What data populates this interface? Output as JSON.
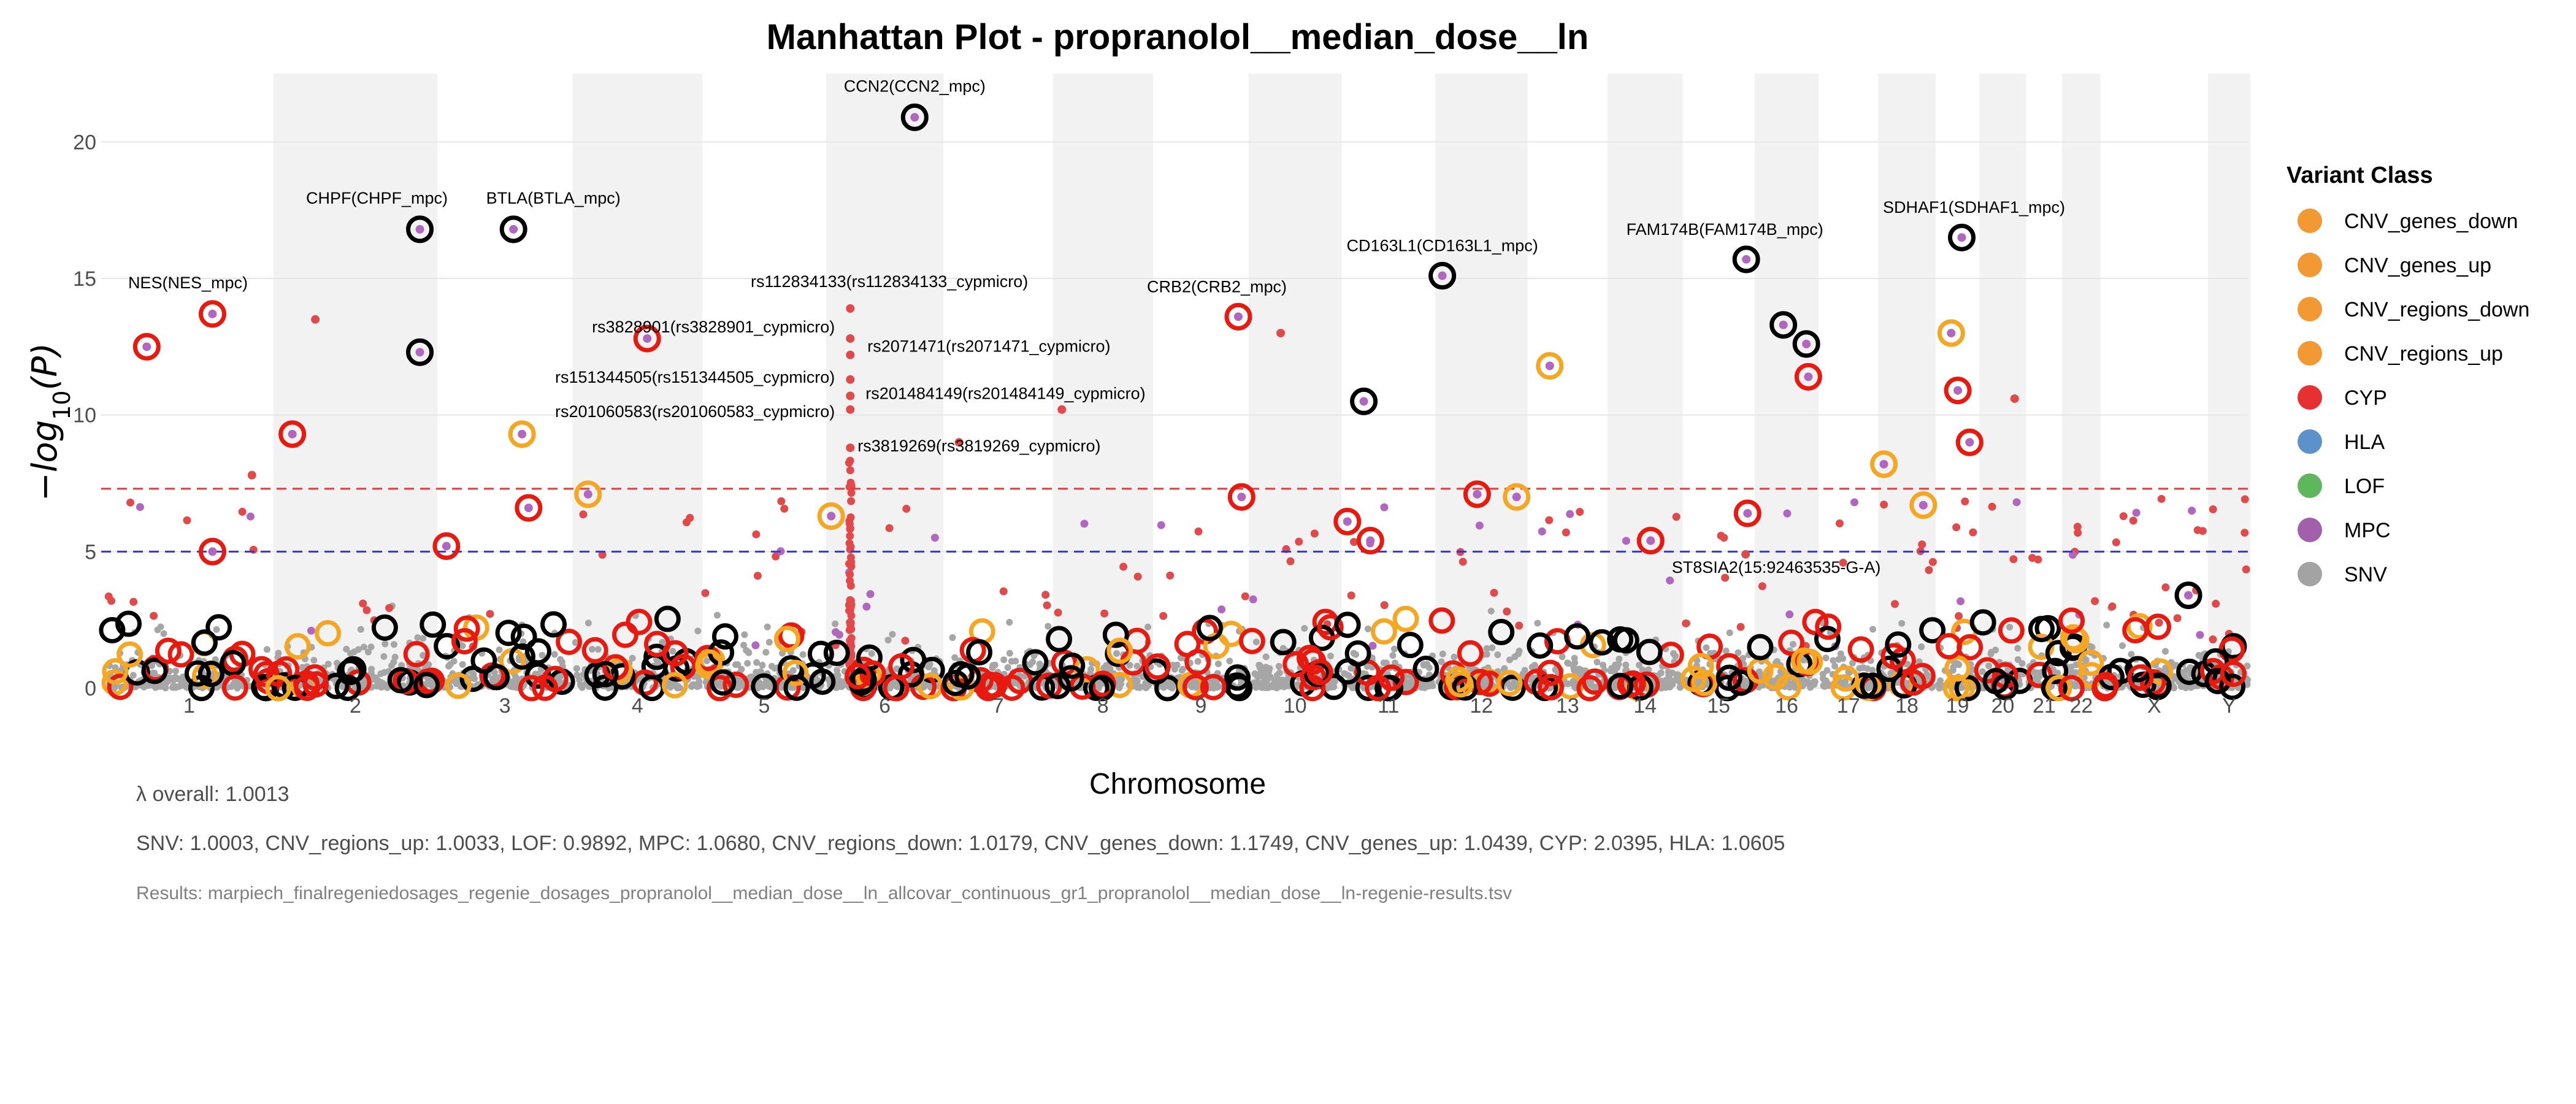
{
  "chart_data": {
    "type": "scatter",
    "title": "Manhattan Plot - propranolol__median_dose__ln",
    "xlabel": "Chromosome",
    "ylabel": "−log10(P)",
    "ylim": [
      0,
      22.5
    ],
    "yticks": [
      0,
      5,
      10,
      15,
      20
    ],
    "chromosomes": [
      "1",
      "2",
      "3",
      "4",
      "5",
      "6",
      "7",
      "8",
      "9",
      "10",
      "11",
      "12",
      "13",
      "14",
      "15",
      "16",
      "17",
      "18",
      "19",
      "20",
      "21",
      "22",
      "X",
      "Y"
    ],
    "chrom_lengths_mb": [
      249,
      242,
      198,
      190,
      181,
      171,
      159,
      145,
      138,
      134,
      135,
      133,
      114,
      107,
      102,
      90,
      83,
      80,
      59,
      64,
      47,
      51,
      156,
      57
    ],
    "thresholds": [
      {
        "name": "genome-wide",
        "y": 7.3,
        "color": "#e8393a"
      },
      {
        "name": "suggestive",
        "y": 5.0,
        "color": "#3333ee"
      }
    ],
    "legend": {
      "title": "Variant Class",
      "entries": [
        {
          "label": "CNV_genes_down",
          "color": "#f28e1e"
        },
        {
          "label": "CNV_genes_up",
          "color": "#f28e1e"
        },
        {
          "label": "CNV_regions_down",
          "color": "#f28e1e"
        },
        {
          "label": "CNV_regions_up",
          "color": "#f28e1e"
        },
        {
          "label": "CYP",
          "color": "#e41a1c"
        },
        {
          "label": "HLA",
          "color": "#4a86c5"
        },
        {
          "label": "LOF",
          "color": "#4daf4a"
        },
        {
          "label": "MPC",
          "color": "#984ea3"
        },
        {
          "label": "SNV",
          "color": "#999999"
        }
      ]
    },
    "labeled_hits": [
      {
        "label": "NES(NES_mpc)",
        "chr": "1",
        "pos_mb": 160,
        "y": 13.7,
        "ring": "red"
      },
      {
        "label": "CHPF(CHPF_mpc)",
        "chr": "2",
        "pos_mb": 219,
        "y": 16.8,
        "ring": "black"
      },
      {
        "label": "BTLA(BTLA_mpc)",
        "chr": "3",
        "pos_mb": 112,
        "y": 16.8,
        "ring": "black"
      },
      {
        "label": "CCN2(CCN2_mpc)",
        "chr": "6",
        "pos_mb": 131,
        "y": 20.9,
        "ring": "black"
      },
      {
        "label": "rs112834133(rs112834133_cypmicro)",
        "chr": "6",
        "pos_mb": 33,
        "y": 13.9,
        "ring": "none"
      },
      {
        "label": "rs3828901(rs3828901_cypmicro)",
        "chr": "6",
        "pos_mb": 33,
        "y": 12.8,
        "ring": "none"
      },
      {
        "label": "rs2071471(rs2071471_cypmicro)",
        "chr": "6",
        "pos_mb": 33,
        "y": 12.2,
        "ring": "none"
      },
      {
        "label": "rs151344505(rs151344505_cypmicro)",
        "chr": "6",
        "pos_mb": 33,
        "y": 11.3,
        "ring": "none"
      },
      {
        "label": "rs201484149(rs201484149_cypmicro)",
        "chr": "6",
        "pos_mb": 33,
        "y": 10.7,
        "ring": "none"
      },
      {
        "label": "rs201060583(rs201060583_cypmicro)",
        "chr": "6",
        "pos_mb": 33,
        "y": 10.2,
        "ring": "none"
      },
      {
        "label": "rs3819269(rs3819269_cypmicro)",
        "chr": "6",
        "pos_mb": 33,
        "y": 8.8,
        "ring": "none"
      },
      {
        "label": "CRB2(CRB2_mpc)",
        "chr": "9",
        "pos_mb": 126,
        "y": 13.6,
        "ring": "red"
      },
      {
        "label": "CD163L1(CD163L1_mpc)",
        "chr": "12",
        "pos_mb": 7,
        "y": 15.1,
        "ring": "black"
      },
      {
        "label": "FAM174B(FAM174B_mpc)",
        "chr": "15",
        "pos_mb": 93,
        "y": 15.7,
        "ring": "black"
      },
      {
        "label": "SDHAF1(SDHAF1_mpc)",
        "chr": "19",
        "pos_mb": 36,
        "y": 16.5,
        "ring": "black"
      },
      {
        "label": "ST8SIA2(15:92463535-G-A)",
        "chr": "15",
        "pos_mb": 92,
        "y": 4.9,
        "ring": "none"
      }
    ],
    "other_hits": [
      {
        "chr": "1",
        "pos_mb": 60,
        "y": 12.5,
        "ring": "red"
      },
      {
        "chr": "1",
        "pos_mb": 160,
        "y": 5.0,
        "ring": "red"
      },
      {
        "chr": "1",
        "pos_mb": 220,
        "y": 7.8,
        "ring": "none"
      },
      {
        "chr": "2",
        "pos_mb": 25,
        "y": 9.3,
        "ring": "red"
      },
      {
        "chr": "2",
        "pos_mb": 60,
        "y": 13.5,
        "ring": "none"
      },
      {
        "chr": "2",
        "pos_mb": 219,
        "y": 12.3,
        "ring": "black"
      },
      {
        "chr": "3",
        "pos_mb": 10,
        "y": 5.2,
        "ring": "red"
      },
      {
        "chr": "3",
        "pos_mb": 125,
        "y": 9.3,
        "ring": "orange"
      },
      {
        "chr": "3",
        "pos_mb": 135,
        "y": 6.6,
        "ring": "red"
      },
      {
        "chr": "4",
        "pos_mb": 20,
        "y": 7.1,
        "ring": "orange"
      },
      {
        "chr": "4",
        "pos_mb": 110,
        "y": 12.8,
        "ring": "red"
      },
      {
        "chr": "6",
        "pos_mb": 4,
        "y": 6.3,
        "ring": "orange"
      },
      {
        "chr": "7",
        "pos_mb": 20,
        "y": 9.0,
        "ring": "none"
      },
      {
        "chr": "8",
        "pos_mb": 10,
        "y": 10.2,
        "ring": "none"
      },
      {
        "chr": "9",
        "pos_mb": 131,
        "y": 7.0,
        "ring": "red"
      },
      {
        "chr": "10",
        "pos_mb": 45,
        "y": 13.0,
        "ring": "none"
      },
      {
        "chr": "11",
        "pos_mb": 5,
        "y": 6.1,
        "ring": "red"
      },
      {
        "chr": "11",
        "pos_mb": 30,
        "y": 10.5,
        "ring": "black"
      },
      {
        "chr": "11",
        "pos_mb": 40,
        "y": 5.4,
        "ring": "red"
      },
      {
        "chr": "12",
        "pos_mb": 60,
        "y": 7.1,
        "ring": "red"
      },
      {
        "chr": "12",
        "pos_mb": 120,
        "y": 7.0,
        "ring": "orange"
      },
      {
        "chr": "13",
        "pos_mb": 30,
        "y": 11.8,
        "ring": "orange"
      },
      {
        "chr": "14",
        "pos_mb": 62,
        "y": 5.4,
        "ring": "red"
      },
      {
        "chr": "15",
        "pos_mb": 95,
        "y": 6.4,
        "ring": "red"
      },
      {
        "chr": "16",
        "pos_mb": 40,
        "y": 13.3,
        "ring": "black"
      },
      {
        "chr": "16",
        "pos_mb": 75,
        "y": 12.6,
        "ring": "black"
      },
      {
        "chr": "16",
        "pos_mb": 78,
        "y": 11.4,
        "ring": "red"
      },
      {
        "chr": "18",
        "pos_mb": 5,
        "y": 8.2,
        "ring": "orange"
      },
      {
        "chr": "18",
        "pos_mb": 65,
        "y": 6.7,
        "ring": "orange"
      },
      {
        "chr": "19",
        "pos_mb": 20,
        "y": 13.0,
        "ring": "orange"
      },
      {
        "chr": "19",
        "pos_mb": 30,
        "y": 10.9,
        "ring": "red"
      },
      {
        "chr": "19",
        "pos_mb": 48,
        "y": 9.0,
        "ring": "red"
      },
      {
        "chr": "20",
        "pos_mb": 50,
        "y": 10.6,
        "ring": "none"
      },
      {
        "chr": "X",
        "pos_mb": 130,
        "y": 3.4,
        "ring": "black"
      }
    ]
  },
  "caption": {
    "lambda_overall": "λ overall: 1.0013",
    "lambda_by_class": "SNV: 1.0003, CNV_regions_up: 1.0033, LOF: 0.9892, MPC: 1.0680, CNV_regions_down: 1.0179, CNV_genes_down: 1.1749, CNV_genes_up: 1.0439, CYP: 2.0395, HLA: 1.0605",
    "results_file": "Results: marpiech_finalregeniedosages_regenie_dosages_propranolol__median_dose__ln_allcovar_continuous_gr1_propranolol__median_dose__ln-regenie-results.tsv"
  }
}
